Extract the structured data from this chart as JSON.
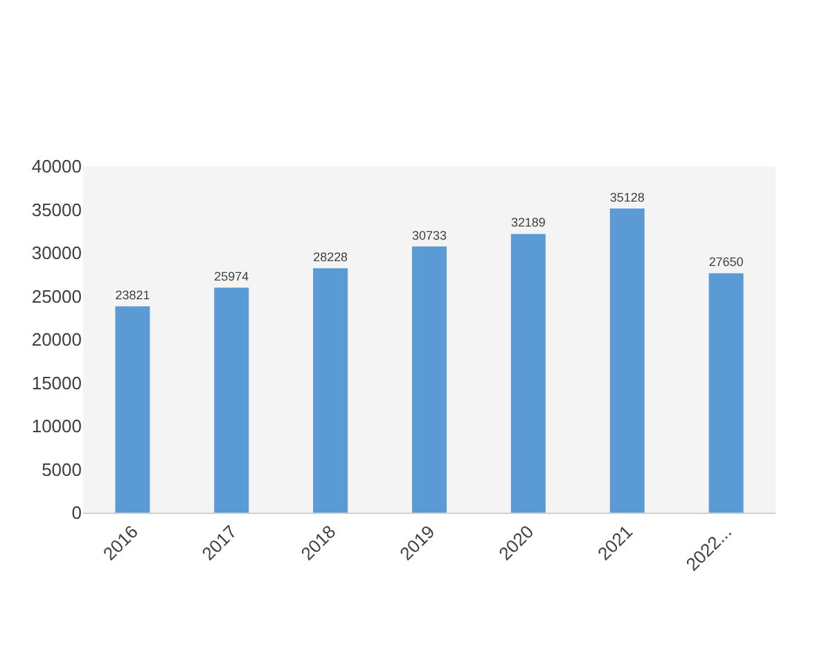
{
  "chart_data": {
    "type": "bar",
    "categories": [
      "2016",
      "2017",
      "2018",
      "2019",
      "2020",
      "2021",
      "2022..."
    ],
    "values": [
      23821,
      25974,
      28228,
      30733,
      32189,
      35128,
      27650
    ],
    "color": "#5b9bd5",
    "ylim": [
      0,
      40000
    ],
    "yticks": [
      0,
      5000,
      10000,
      15000,
      20000,
      25000,
      30000,
      35000,
      40000
    ],
    "grid": false,
    "data_labels": true
  }
}
